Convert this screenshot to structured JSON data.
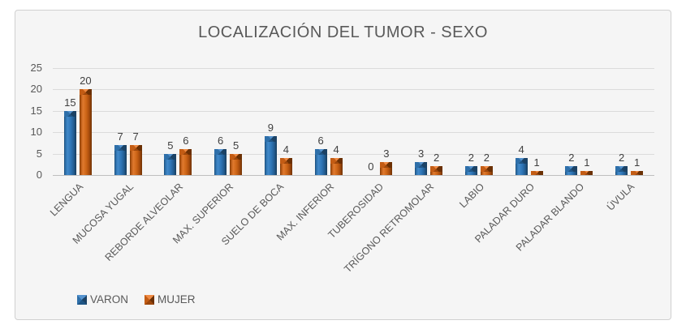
{
  "panel": {
    "background": "#f5f5f5",
    "border_color": "#d0d0d0"
  },
  "chart_data": {
    "type": "bar",
    "title": "LOCALIZACIÓN DEL TUMOR - SEXO",
    "categories": [
      "LENGUA",
      "MUCOSA YUGAL",
      "REBORDE ALVEOLAR",
      "MAX. SUPERIOR",
      "SUELO DE BOCA",
      "MAX. INFERIOR",
      "TUBEROSIDAD",
      "TRÍGONO RETROMOLAR",
      "LABIO",
      "PALADAR DURO",
      "PALADAR BLANDO",
      "ÚVULA"
    ],
    "series": [
      {
        "name": "VARON",
        "color": "#2e75b6",
        "values": [
          15,
          7,
          5,
          6,
          9,
          6,
          0,
          3,
          2,
          4,
          2,
          2
        ]
      },
      {
        "name": "MUJER",
        "color": "#c55a11",
        "values": [
          20,
          7,
          6,
          5,
          4,
          4,
          3,
          2,
          2,
          1,
          1,
          1
        ]
      }
    ],
    "yticks": [
      0,
      5,
      10,
      15,
      20,
      25
    ],
    "ylim": [
      0,
      25
    ],
    "grid": true,
    "legend_position": "bottom-left",
    "data_labels": true
  },
  "colors": {
    "title_text": "#595959",
    "axis_text": "#595959",
    "data_label_text": "#404040",
    "gridline": "#dbdbdb",
    "axis_line": "#bfbfbf",
    "varon_fill": "#2e75b6",
    "mujer_fill": "#c55a11"
  }
}
